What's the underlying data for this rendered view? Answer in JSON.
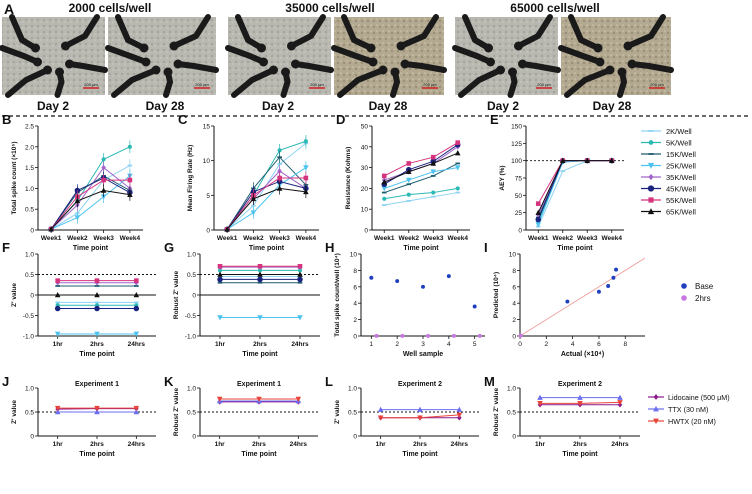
{
  "header": {
    "panel_letter": "A",
    "densities": [
      "2000 cells/well",
      "35000 cells/well",
      "65000 cells/well"
    ],
    "days": [
      "Day 2",
      "Day 28",
      "Day 2",
      "Day 28",
      "Day 2",
      "Day 28"
    ],
    "scale_bar": "200 μm"
  },
  "colors": {
    "2K": "#8fd3f2",
    "5K": "#2bb9b4",
    "15K": "#1f5c6e",
    "25K": "#4fc3f0",
    "35K": "#a066c8",
    "45K": "#1a237e",
    "55K": "#d6337e",
    "65K": "#111111"
  },
  "legend_density": [
    "2K/Well",
    "5K/Well",
    "15K/Well",
    "25K/Well",
    "35K/Well",
    "45K/Well",
    "55K/Well",
    "65K/Well"
  ],
  "legend_base": [
    "Base",
    "2hrs"
  ],
  "legend_drug": [
    "Lidocaine (500 μM)",
    "TTX (30 nM)",
    "HWTX (20 nM)"
  ],
  "chart_data": [
    {
      "id": "B",
      "type": "line",
      "title": "",
      "xlabel": "Time point",
      "ylabel": "Total spike count (×10⁵)",
      "categories": [
        "Week1",
        "Week2",
        "Week3",
        "Week4"
      ],
      "ylim": [
        0,
        2.5
      ],
      "yticks": [
        "0",
        "0.5",
        "1.0",
        "1.5",
        "2.0",
        "2.5"
      ],
      "series": [
        {
          "name": "2K/Well",
          "values": [
            0.02,
            0.4,
            1.2,
            1.55
          ]
        },
        {
          "name": "5K/Well",
          "values": [
            0.02,
            0.7,
            1.7,
            2.0
          ]
        },
        {
          "name": "15K/Well",
          "values": [
            0.02,
            0.9,
            1.3,
            0.95
          ]
        },
        {
          "name": "25K/Well",
          "values": [
            0.02,
            0.3,
            0.8,
            1.3
          ]
        },
        {
          "name": "35K/Well",
          "values": [
            0.02,
            0.6,
            1.5,
            1.0
          ]
        },
        {
          "name": "45K/Well",
          "values": [
            0.02,
            0.95,
            1.25,
            0.9
          ]
        },
        {
          "name": "55K/Well",
          "values": [
            0.02,
            0.8,
            1.2,
            1.2
          ]
        },
        {
          "name": "65K/Well",
          "values": [
            0.02,
            0.7,
            0.95,
            0.85
          ]
        }
      ]
    },
    {
      "id": "C",
      "type": "line",
      "title": "",
      "xlabel": "Time point",
      "ylabel": "Mean Firing Rate (Hz)",
      "categories": [
        "Week1",
        "Week2",
        "Week3",
        "Week4"
      ],
      "ylim": [
        0,
        15
      ],
      "yticks": [
        "0",
        "5",
        "10",
        "15"
      ],
      "series": [
        {
          "name": "2K/Well",
          "values": [
            0.1,
            3.5,
            9.5,
            12.5
          ]
        },
        {
          "name": "5K/Well",
          "values": [
            0.1,
            5.0,
            11.5,
            12.8
          ]
        },
        {
          "name": "15K/Well",
          "values": [
            0.1,
            6.0,
            10.5,
            6.5
          ]
        },
        {
          "name": "25K/Well",
          "values": [
            0.1,
            2.5,
            6.5,
            9.0
          ]
        },
        {
          "name": "35K/Well",
          "values": [
            0.1,
            4.5,
            8.5,
            6.0
          ]
        },
        {
          "name": "45K/Well",
          "values": [
            0.1,
            5.5,
            7.0,
            6.0
          ]
        },
        {
          "name": "55K/Well",
          "values": [
            0.1,
            5.0,
            7.5,
            7.5
          ]
        },
        {
          "name": "65K/Well",
          "values": [
            0.1,
            4.5,
            6.0,
            5.5
          ]
        }
      ]
    },
    {
      "id": "D",
      "type": "line",
      "title": "",
      "xlabel": "Time point",
      "ylabel": "Resistance (Kohms)",
      "categories": [
        "Week1",
        "Week2",
        "Week3",
        "Week4"
      ],
      "ylim": [
        0,
        50
      ],
      "yticks": [
        "0",
        "10",
        "20",
        "30",
        "40",
        "50"
      ],
      "series": [
        {
          "name": "2K/Well",
          "values": [
            12,
            14,
            16,
            18
          ]
        },
        {
          "name": "5K/Well",
          "values": [
            15,
            17,
            18,
            20
          ]
        },
        {
          "name": "15K/Well",
          "values": [
            18,
            22,
            26,
            32
          ]
        },
        {
          "name": "25K/Well",
          "values": [
            20,
            24,
            28,
            30
          ]
        },
        {
          "name": "35K/Well",
          "values": [
            24,
            28,
            32,
            40
          ]
        },
        {
          "name": "45K/Well",
          "values": [
            22,
            29,
            33,
            41
          ]
        },
        {
          "name": "55K/Well",
          "values": [
            26,
            32,
            35,
            42
          ]
        },
        {
          "name": "65K/Well",
          "values": [
            23,
            28,
            32,
            37
          ]
        }
      ]
    },
    {
      "id": "E",
      "type": "line",
      "title": "",
      "xlabel": "Time point",
      "ylabel": "AEY (%)",
      "categories": [
        "Week1",
        "Week2",
        "Week3",
        "Week4"
      ],
      "ylim": [
        0,
        150
      ],
      "yticks": [
        "0",
        "25",
        "50",
        "75",
        "100",
        "125",
        "150"
      ],
      "reference_line": 100,
      "series": [
        {
          "name": "2K/Well",
          "values": [
            5,
            85,
            100,
            100
          ]
        },
        {
          "name": "5K/Well",
          "values": [
            12,
            98,
            100,
            100
          ]
        },
        {
          "name": "15K/Well",
          "values": [
            18,
            100,
            100,
            100
          ]
        },
        {
          "name": "25K/Well",
          "values": [
            8,
            98,
            100,
            100
          ]
        },
        {
          "name": "35K/Well",
          "values": [
            22,
            100,
            100,
            100
          ]
        },
        {
          "name": "45K/Well",
          "values": [
            15,
            100,
            100,
            100
          ]
        },
        {
          "name": "55K/Well",
          "values": [
            38,
            100,
            100,
            100
          ]
        },
        {
          "name": "65K/Well",
          "values": [
            25,
            100,
            100,
            100
          ]
        }
      ]
    },
    {
      "id": "F",
      "type": "line",
      "title": "",
      "xlabel": "Time point",
      "ylabel": "Z' value",
      "categories": [
        "1hr",
        "2hrs",
        "24hrs"
      ],
      "ylim": [
        -1.0,
        1.0
      ],
      "yticks": [
        "-1.0",
        "-0.5",
        "0",
        "0.5",
        "1.0"
      ],
      "reference_line": 0.5,
      "series": [
        {
          "name": "2K/Well",
          "values": [
            -0.18,
            -0.18,
            -0.18
          ]
        },
        {
          "name": "5K/Well",
          "values": [
            -0.25,
            -0.25,
            -0.25
          ]
        },
        {
          "name": "15K/Well",
          "values": [
            0.22,
            0.22,
            0.22
          ]
        },
        {
          "name": "25K/Well",
          "values": [
            -0.95,
            -0.95,
            -0.95
          ]
        },
        {
          "name": "35K/Well",
          "values": [
            0.3,
            0.3,
            0.3
          ]
        },
        {
          "name": "45K/Well",
          "values": [
            -0.33,
            -0.33,
            -0.33
          ]
        },
        {
          "name": "55K/Well",
          "values": [
            0.35,
            0.35,
            0.35
          ]
        },
        {
          "name": "65K/Well",
          "values": [
            0.0,
            0.0,
            0.0
          ]
        }
      ]
    },
    {
      "id": "G",
      "type": "line",
      "title": "",
      "xlabel": "Time point",
      "ylabel": "Robust Z' value",
      "categories": [
        "1hr",
        "2hrs",
        "24hrs"
      ],
      "ylim": [
        -1.0,
        1.0
      ],
      "yticks": [
        "-1.0",
        "-0.5",
        "0",
        "0.5",
        "1.0"
      ],
      "reference_line": 0.5,
      "series": [
        {
          "name": "2K/Well",
          "values": [
            0.45,
            0.45,
            0.45
          ]
        },
        {
          "name": "5K/Well",
          "values": [
            0.6,
            0.6,
            0.6
          ]
        },
        {
          "name": "15K/Well",
          "values": [
            0.3,
            0.3,
            0.3
          ]
        },
        {
          "name": "25K/Well",
          "values": [
            -0.55,
            -0.55,
            -0.55
          ]
        },
        {
          "name": "35K/Well",
          "values": [
            0.68,
            0.68,
            0.68
          ]
        },
        {
          "name": "45K/Well",
          "values": [
            0.38,
            0.38,
            0.38
          ]
        },
        {
          "name": "55K/Well",
          "values": [
            0.7,
            0.7,
            0.7
          ]
        },
        {
          "name": "65K/Well",
          "values": [
            0.5,
            0.5,
            0.5
          ]
        }
      ]
    },
    {
      "id": "H",
      "type": "scatter",
      "title": "",
      "xlabel": "Well sample",
      "ylabel": "Total spike count/well (10⁴)",
      "xlim": [
        0.6,
        5.4
      ],
      "xticks": [
        "1",
        "2",
        "3",
        "4",
        "5"
      ],
      "ylim": [
        0,
        10
      ],
      "yticks": [
        "0",
        "2",
        "4",
        "6",
        "8",
        "10"
      ],
      "series": [
        {
          "name": "Base",
          "x": [
            1,
            2,
            3,
            4,
            5
          ],
          "y": [
            7.1,
            6.7,
            6.0,
            7.3,
            3.6
          ]
        },
        {
          "name": "2hrs",
          "x": [
            1.2,
            2.2,
            3.2,
            4.2,
            5.2
          ],
          "y": [
            0.02,
            0.02,
            0.02,
            0.02,
            0.02
          ]
        }
      ]
    },
    {
      "id": "I",
      "type": "scatter",
      "title": "",
      "xlabel": "Actual (×10⁴)",
      "ylabel": "Predicted (10⁴)",
      "xlim": [
        0,
        9.5
      ],
      "xticks": [
        "0",
        "2",
        "4",
        "6",
        "8"
      ],
      "ylim": [
        0,
        10
      ],
      "yticks": [
        "0",
        "2",
        "4",
        "6",
        "8",
        "10"
      ],
      "series": [
        {
          "name": "Base",
          "x": [
            3.6,
            6.0,
            6.7,
            7.1,
            7.3
          ],
          "y": [
            4.2,
            5.4,
            6.1,
            7.1,
            8.1
          ]
        },
        {
          "name": "2hrs",
          "x": [
            0.05
          ],
          "y": [
            0.05
          ]
        }
      ]
    },
    {
      "id": "J",
      "type": "line",
      "title": "Experiment 1",
      "xlabel": "Time point",
      "ylabel": "Z' value",
      "categories": [
        "1hr",
        "2hrs",
        "24hrs"
      ],
      "ylim": [
        0,
        1.0
      ],
      "yticks": [
        "0",
        "0.5",
        "1.0"
      ],
      "reference_line": 0.5,
      "series": [
        {
          "name": "Lidocaine (500 μM)",
          "values": [
            0.56,
            0.57,
            0.57
          ]
        },
        {
          "name": "TTX (30 nM)",
          "values": [
            0.5,
            0.5,
            0.5
          ]
        },
        {
          "name": "HWTX (20 nM)",
          "values": [
            0.58,
            0.58,
            0.58
          ]
        }
      ]
    },
    {
      "id": "K",
      "type": "line",
      "title": "Experiment 1",
      "xlabel": "Time point",
      "ylabel": "Robust Z' value",
      "categories": [
        "1hr",
        "2hrs",
        "24hrs"
      ],
      "ylim": [
        0,
        1.0
      ],
      "yticks": [
        "0",
        "0.5",
        "1.0"
      ],
      "reference_line": 0.5,
      "series": [
        {
          "name": "Lidocaine (500 μM)",
          "values": [
            0.71,
            0.71,
            0.71
          ]
        },
        {
          "name": "TTX (30 nM)",
          "values": [
            0.73,
            0.73,
            0.73
          ]
        },
        {
          "name": "HWTX (20 nM)",
          "values": [
            0.77,
            0.77,
            0.77
          ]
        }
      ]
    },
    {
      "id": "L",
      "type": "line",
      "title": "Experiment 2",
      "xlabel": "Time point",
      "ylabel": "Z' value",
      "categories": [
        "1hr",
        "2hrs",
        "24hrs"
      ],
      "ylim": [
        0,
        1.0
      ],
      "yticks": [
        "0",
        "0.5",
        "1.0"
      ],
      "reference_line": 0.5,
      "series": [
        {
          "name": "Lidocaine (500 μM)",
          "values": [
            0.38,
            0.38,
            0.38
          ]
        },
        {
          "name": "TTX (30 nM)",
          "values": [
            0.55,
            0.55,
            0.55
          ]
        },
        {
          "name": "HWTX (20 nM)",
          "values": [
            0.38,
            0.38,
            0.44
          ]
        }
      ]
    },
    {
      "id": "M",
      "type": "line",
      "title": "Experiment 2",
      "xlabel": "Time point",
      "ylabel": "Robust Z' value",
      "categories": [
        "1hr",
        "2hrs",
        "24hrs"
      ],
      "ylim": [
        0,
        1.0
      ],
      "yticks": [
        "0",
        "0.5",
        "1.0"
      ],
      "reference_line": 0.5,
      "series": [
        {
          "name": "Lidocaine (500 μM)",
          "values": [
            0.65,
            0.65,
            0.65
          ]
        },
        {
          "name": "TTX (30 nM)",
          "values": [
            0.8,
            0.8,
            0.8
          ]
        },
        {
          "name": "HWTX (20 nM)",
          "values": [
            0.68,
            0.68,
            0.7
          ]
        }
      ]
    }
  ]
}
